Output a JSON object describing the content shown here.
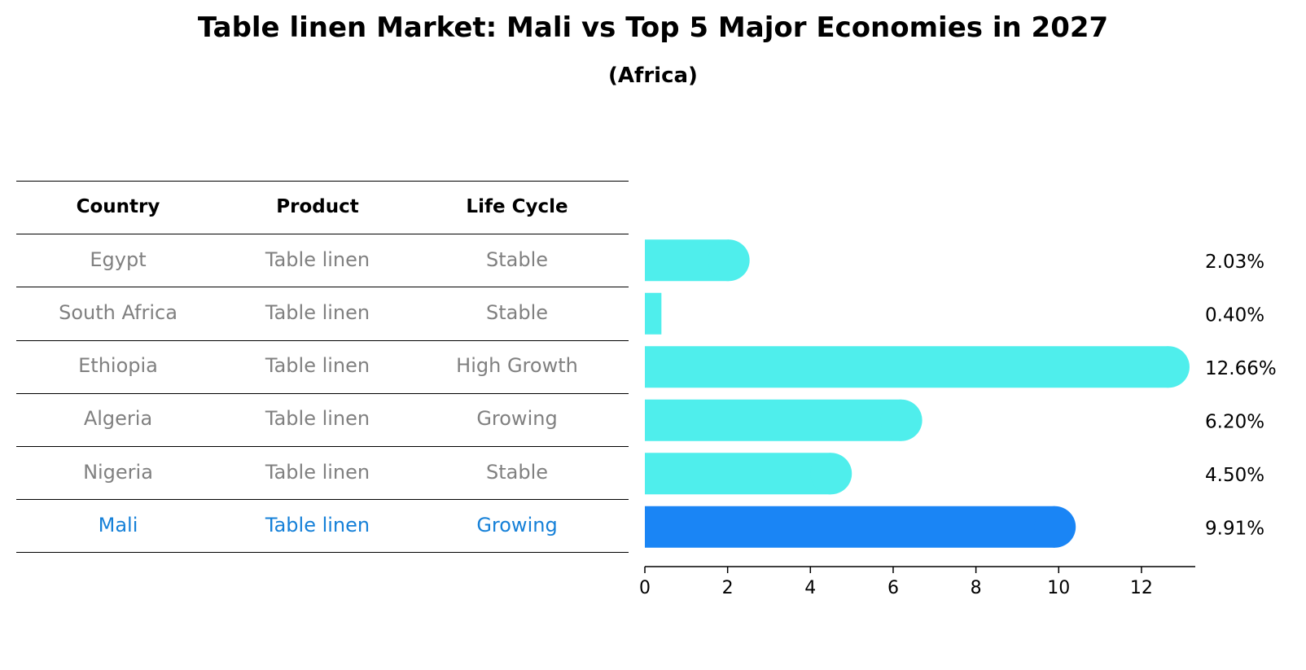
{
  "title": "Table linen Market: Mali vs Top 5 Major Economies in 2027",
  "subtitle": "(Africa)",
  "table": {
    "headers": [
      "Country",
      "Product",
      "Life Cycle"
    ],
    "rows": [
      {
        "country": "Egypt",
        "product": "Table linen",
        "life_cycle": "Stable"
      },
      {
        "country": "South Africa",
        "product": "Table linen",
        "life_cycle": "Stable"
      },
      {
        "country": "Ethiopia",
        "product": "Table linen",
        "life_cycle": "High Growth"
      },
      {
        "country": "Algeria",
        "product": "Table linen",
        "life_cycle": "Growing"
      },
      {
        "country": "Nigeria",
        "product": "Table linen",
        "life_cycle": "Stable"
      },
      {
        "country": "Mali",
        "product": "Table linen",
        "life_cycle": "Growing",
        "highlight": true
      }
    ]
  },
  "chart_data": {
    "type": "bar",
    "orientation": "horizontal",
    "title": "Table linen Market: Mali vs Top 5 Major Economies in 2027",
    "subtitle": "(Africa)",
    "categories": [
      "Egypt",
      "South Africa",
      "Ethiopia",
      "Algeria",
      "Nigeria",
      "Mali"
    ],
    "values": [
      2.03,
      0.4,
      12.66,
      6.2,
      4.5,
      9.91
    ],
    "value_labels": [
      "2.03%",
      "0.40%",
      "12.66%",
      "6.20%",
      "4.50%",
      "9.91%"
    ],
    "xlim": [
      0,
      13.3
    ],
    "xticks": [
      0,
      2,
      4,
      6,
      8,
      10,
      12
    ],
    "xlabel": "",
    "ylabel": "",
    "grid": false,
    "highlight": "Mali",
    "colors": {
      "default": "#4feeec",
      "highlight": "#1a85f5"
    }
  },
  "colors": {
    "muted_text": "#808080",
    "highlight_text": "#1580d8"
  }
}
